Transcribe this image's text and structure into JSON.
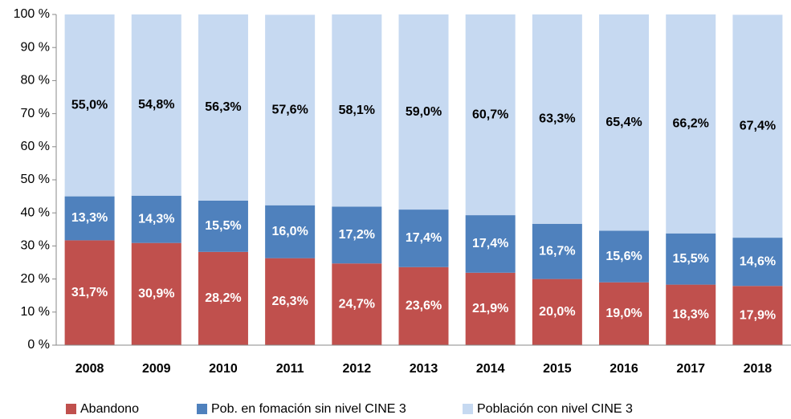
{
  "chart_data": {
    "type": "stacked-bar",
    "categories": [
      "2008",
      "2009",
      "2010",
      "2011",
      "2012",
      "2013",
      "2014",
      "2015",
      "2016",
      "2017",
      "2018"
    ],
    "series": [
      {
        "name": "Abandono",
        "color": "#c0504d",
        "label_color": "#ffffff",
        "values": [
          31.7,
          30.9,
          28.2,
          26.3,
          24.7,
          23.6,
          21.9,
          20.0,
          19.0,
          18.3,
          17.9
        ],
        "value_labels": [
          "31,7%",
          "30,9%",
          "28,2%",
          "26,3%",
          "24,7%",
          "23,6%",
          "21,9%",
          "20,0%",
          "19,0%",
          "18,3%",
          "17,9%"
        ]
      },
      {
        "name": "Pob. en fomación sin nivel CINE 3",
        "color": "#4f81bd",
        "label_color": "#ffffff",
        "values": [
          13.3,
          14.3,
          15.5,
          16.0,
          17.2,
          17.4,
          17.4,
          16.7,
          15.6,
          15.5,
          14.6
        ],
        "value_labels": [
          "13,3%",
          "14,3%",
          "15,5%",
          "16,0%",
          "17,2%",
          "17,4%",
          "17,4%",
          "16,7%",
          "15,6%",
          "15,5%",
          "14,6%"
        ]
      },
      {
        "name": "Población con nivel CINE 3",
        "color": "#c6d9f1",
        "label_color": "#000000",
        "values": [
          55.0,
          54.8,
          56.3,
          57.6,
          58.1,
          59.0,
          60.7,
          63.3,
          65.4,
          66.2,
          67.4
        ],
        "value_labels": [
          "55,0%",
          "54,8%",
          "56,3%",
          "57,6%",
          "58,1%",
          "59,0%",
          "60,7%",
          "63,3%",
          "65,4%",
          "66,2%",
          "67,4%"
        ]
      }
    ],
    "ylim": [
      0,
      100
    ],
    "yticks": [
      {
        "value": 0,
        "label": "0 %"
      },
      {
        "value": 10,
        "label": "10 %"
      },
      {
        "value": 20,
        "label": "20 %"
      },
      {
        "value": 30,
        "label": "30 %"
      },
      {
        "value": 40,
        "label": "40 %"
      },
      {
        "value": 50,
        "label": "50 %"
      },
      {
        "value": 60,
        "label": "60 %"
      },
      {
        "value": 70,
        "label": "70 %"
      },
      {
        "value": 80,
        "label": "80 %"
      },
      {
        "value": 90,
        "label": "90 %"
      },
      {
        "value": 100,
        "label": "100 %"
      }
    ],
    "legend": "bottom"
  }
}
